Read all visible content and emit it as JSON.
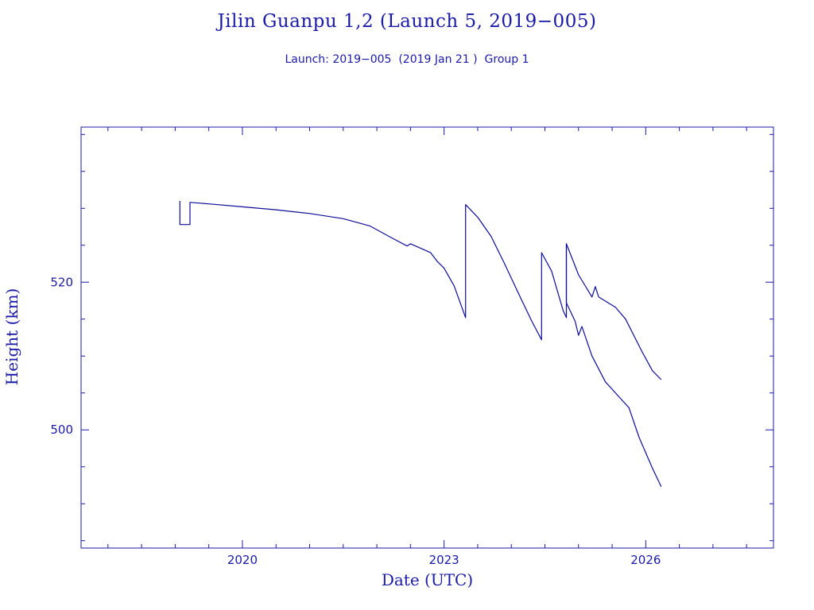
{
  "chart_data": {
    "type": "line",
    "title": "Jilin Guanpu 1,2 (Launch 5, 2019−005)",
    "subtitle": "Launch: 2019−005  (2019 Jan 21 )  Group 1",
    "xlabel": "Date (UTC)",
    "ylabel": "Height (km)",
    "xlim": [
      2017.6,
      2027.9
    ],
    "ylim": [
      484.0,
      541.0
    ],
    "xticks": [
      {
        "value": 2020,
        "label": "2020"
      },
      {
        "value": 2023,
        "label": "2023"
      },
      {
        "value": 2026,
        "label": "2026"
      }
    ],
    "yticks": [
      {
        "value": 500,
        "label": "500"
      },
      {
        "value": 520,
        "label": "520"
      }
    ],
    "x_minor_step": 0.5,
    "y_minor_step": 5,
    "grid": false,
    "series": [
      {
        "x": [
          2019.07,
          2019.07,
          2019.22,
          2019.22,
          2019.5,
          2020.0,
          2020.5,
          2021.0,
          2021.5,
          2021.9,
          2022.2,
          2022.45,
          2022.5,
          2022.8,
          2022.9,
          2023.0,
          2023.15,
          2023.32,
          2023.32,
          2023.5,
          2023.7,
          2023.9,
          2024.1,
          2024.3,
          2024.45,
          2024.45,
          2024.6,
          2024.77,
          2024.82,
          2024.82,
          2025.0,
          2025.2,
          2025.25,
          2025.3,
          2025.55,
          2025.7,
          2025.95,
          2026.1,
          2026.23
        ],
        "y": [
          531.0,
          527.8,
          527.8,
          530.8,
          530.6,
          530.2,
          529.8,
          529.3,
          528.6,
          527.6,
          526.1,
          524.9,
          525.2,
          524.0,
          522.8,
          521.9,
          519.5,
          515.2,
          530.5,
          528.8,
          526.2,
          522.5,
          518.6,
          514.8,
          512.2,
          524.0,
          521.5,
          516.2,
          515.2,
          525.2,
          521.0,
          518.0,
          519.4,
          518.0,
          516.6,
          515.0,
          510.5,
          508.0,
          506.8
        ]
      },
      {
        "x": [
          2024.82,
          2024.82,
          2024.95,
          2025.0,
          2025.05,
          2025.2,
          2025.4,
          2025.6,
          2025.75,
          2025.9,
          2026.1,
          2026.23
        ],
        "y": [
          525.2,
          517.2,
          514.7,
          512.8,
          514.0,
          510.0,
          506.5,
          504.5,
          503.0,
          499.0,
          494.8,
          492.3
        ]
      }
    ],
    "colors": {
      "ink": "#1a1aa6",
      "line": "#0d0d9a"
    }
  }
}
